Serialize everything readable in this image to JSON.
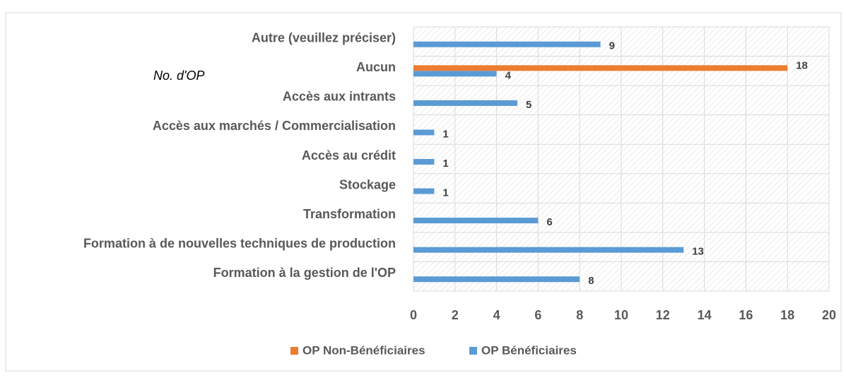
{
  "chart_data": {
    "type": "hbar",
    "annotation": "No. d'OP",
    "categories": [
      "Autre (veuillez préciser)",
      "Aucun",
      "Accès aux intrants",
      "Accès aux marchés / Commercialisation",
      "Accès au crédit",
      "Stockage",
      "Transformation",
      "Formation à de nouvelles techniques de production",
      "Formation à la gestion de l'OP"
    ],
    "series": [
      {
        "name": "OP Non-Bénéficiaires",
        "color": "#ed7d31",
        "values": [
          null,
          18,
          null,
          null,
          null,
          null,
          null,
          null,
          null
        ]
      },
      {
        "name": "OP Bénéficiaires",
        "color": "#5b9bd5",
        "values": [
          9,
          4,
          5,
          1,
          1,
          1,
          6,
          13,
          8
        ]
      }
    ],
    "xlim": [
      0,
      20
    ],
    "xticks": [
      0,
      2,
      4,
      6,
      8,
      10,
      12,
      14,
      16,
      18,
      20
    ],
    "grid": true,
    "legend": "bottom"
  }
}
